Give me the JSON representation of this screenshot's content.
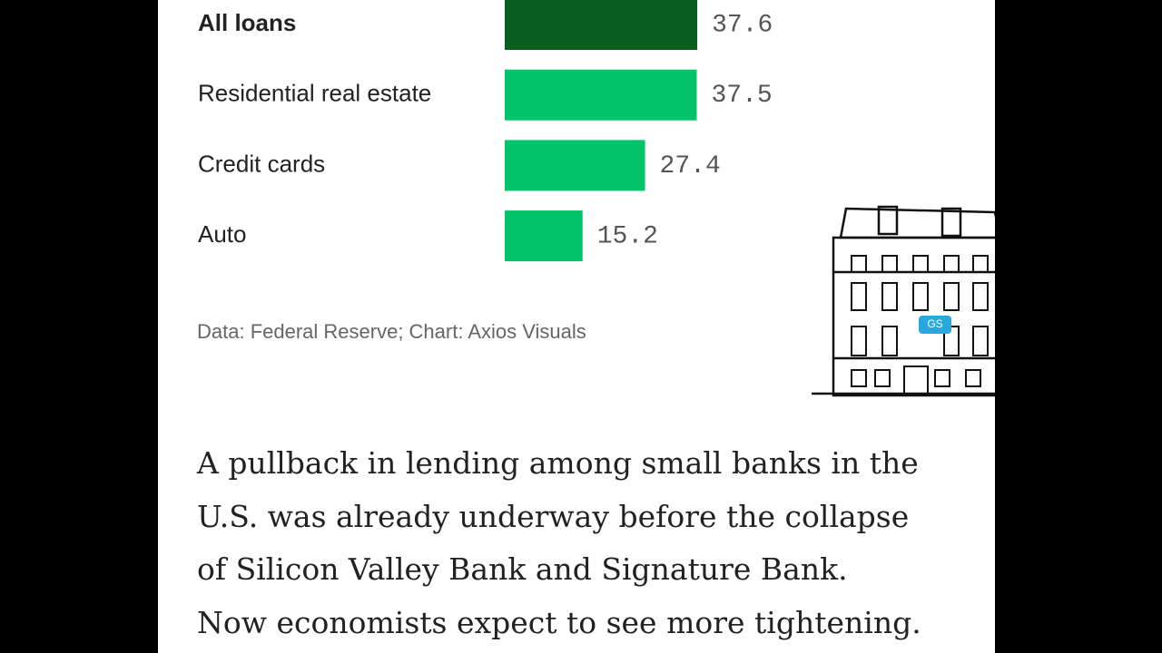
{
  "chart_data": {
    "type": "bar",
    "orientation": "horizontal",
    "categories": [
      "All loans",
      "Residential real estate",
      "Credit cards",
      "Auto"
    ],
    "values": [
      37.6,
      37.5,
      27.4,
      15.2
    ],
    "colors": [
      "#0b5e1f",
      "#00c46a",
      "#00c46a",
      "#00c46a"
    ],
    "source": "Data: Federal Reserve; Chart: Axios Visuals"
  },
  "illustration": {
    "sign": "GS"
  },
  "article": {
    "lines": [
      "A pullback in lending among small banks in the",
      "U.S. was already underway before the collapse",
      "of Silicon Valley Bank and Signature Bank.",
      "Now economists expect to see more tightening."
    ]
  }
}
